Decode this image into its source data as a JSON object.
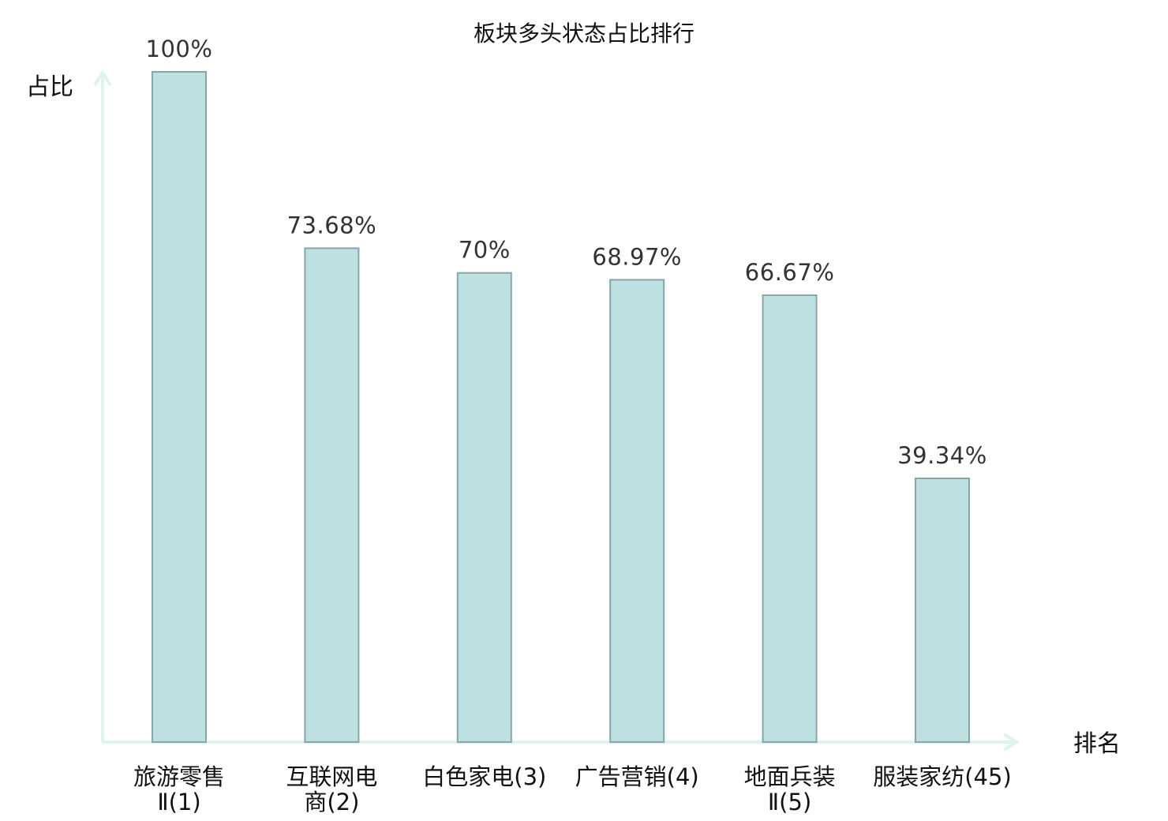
{
  "chart_data": {
    "type": "bar",
    "title": "板块多头状态占比排行",
    "ylabel": "占比",
    "xlabel": "排名",
    "ylim": [
      0,
      100
    ],
    "grid": false,
    "categories": [
      {
        "name_line1": "旅游零售",
        "name_line2": "Ⅱ(1)"
      },
      {
        "name_line1": "互联网电",
        "name_line2": "商(2)"
      },
      {
        "name_line1": "白色家电(3)",
        "name_line2": ""
      },
      {
        "name_line1": "广告营销(4)",
        "name_line2": ""
      },
      {
        "name_line1": "地面兵装",
        "name_line2": "Ⅱ(5)"
      },
      {
        "name_line1": "服装家纺(45)",
        "name_line2": ""
      }
    ],
    "values": [
      100,
      73.68,
      70,
      68.97,
      66.67,
      39.34
    ],
    "value_labels": [
      "100%",
      "73.68%",
      "70%",
      "68.97%",
      "66.67%",
      "39.34%"
    ],
    "highlight_index": 5,
    "colors": {
      "bar_fill": "#bde0e3",
      "bar_stroke": "#86a6a9",
      "axis": "#dff2ef",
      "highlight_text": "#e0121b",
      "text": "#111111",
      "value_text": "#333333"
    }
  }
}
